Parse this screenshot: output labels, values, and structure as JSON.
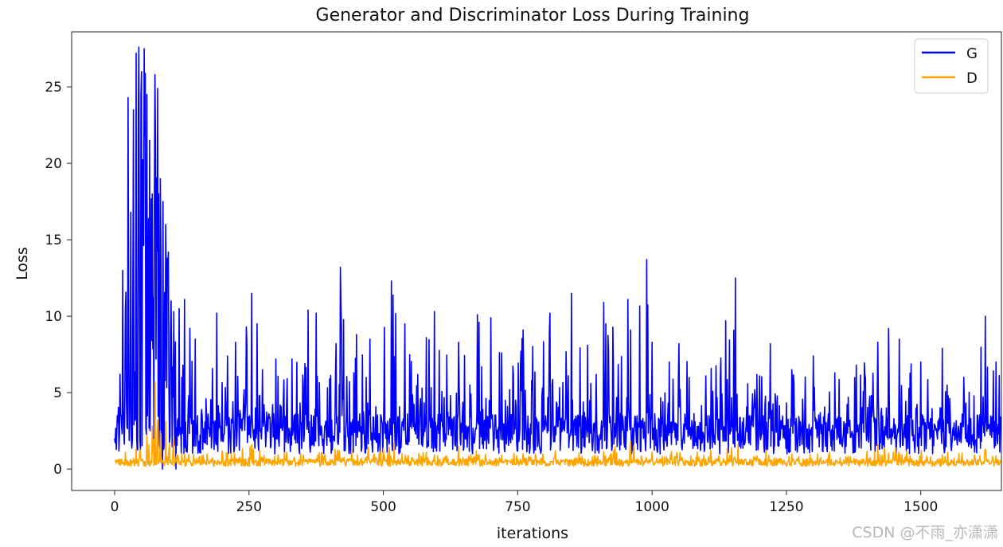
{
  "chart_data": {
    "type": "line",
    "title": "Generator and Discriminator Loss During Training",
    "xlabel": "iterations",
    "ylabel": "Loss",
    "xlim": [
      -80,
      1650
    ],
    "ylim": [
      -1.4,
      28.6
    ],
    "xticks": [
      0,
      250,
      500,
      750,
      1000,
      1250,
      1500
    ],
    "yticks": [
      0,
      5,
      10,
      15,
      20,
      25
    ],
    "grid": false,
    "legend": "top-right",
    "n_points": 1650,
    "series": [
      {
        "name": "G",
        "color": "#0000ff",
        "baseline": 2.2,
        "peaks": [
          [
            0,
            2.0
          ],
          [
            5,
            3.5
          ],
          [
            10,
            6.2
          ],
          [
            15,
            13.0
          ],
          [
            20,
            10.5
          ],
          [
            25,
            24.3
          ],
          [
            30,
            16.8
          ],
          [
            35,
            23.5
          ],
          [
            40,
            27.2
          ],
          [
            45,
            27.6
          ],
          [
            50,
            26.0
          ],
          [
            55,
            27.5
          ],
          [
            60,
            24.5
          ],
          [
            65,
            21.5
          ],
          [
            70,
            18.0
          ],
          [
            75,
            25.8
          ],
          [
            80,
            24.9
          ],
          [
            85,
            19.0
          ],
          [
            90,
            17.5
          ],
          [
            95,
            16.0
          ],
          [
            100,
            14.2
          ],
          [
            105,
            11.0
          ],
          [
            110,
            10.3
          ],
          [
            120,
            10.5
          ],
          [
            125,
            6.0
          ],
          [
            130,
            11.1
          ],
          [
            150,
            8.5
          ],
          [
            170,
            4.6
          ],
          [
            190,
            10.2
          ],
          [
            210,
            7.4
          ],
          [
            225,
            8.3
          ],
          [
            245,
            9.3
          ],
          [
            255,
            11.5
          ],
          [
            265,
            9.5
          ],
          [
            300,
            7.2
          ],
          [
            330,
            7.2
          ],
          [
            360,
            10.4
          ],
          [
            375,
            10.2
          ],
          [
            400,
            5.9
          ],
          [
            420,
            13.2
          ],
          [
            450,
            8.8
          ],
          [
            475,
            8.5
          ],
          [
            515,
            12.3
          ],
          [
            540,
            9.5
          ],
          [
            580,
            8.6
          ],
          [
            595,
            10.3
          ],
          [
            640,
            8.3
          ],
          [
            675,
            10.1
          ],
          [
            700,
            9.9
          ],
          [
            720,
            7.6
          ],
          [
            760,
            9.1
          ],
          [
            810,
            10.2
          ],
          [
            850,
            11.5
          ],
          [
            880,
            8.1
          ],
          [
            910,
            10.9
          ],
          [
            955,
            11.1
          ],
          [
            990,
            13.7
          ],
          [
            1000,
            8.3
          ],
          [
            1050,
            8.2
          ],
          [
            1100,
            6.1
          ],
          [
            1155,
            12.5
          ],
          [
            1200,
            6.1
          ],
          [
            1220,
            8.2
          ],
          [
            1260,
            6.5
          ],
          [
            1300,
            7.4
          ],
          [
            1340,
            6.3
          ],
          [
            1380,
            6.8
          ],
          [
            1420,
            8.3
          ],
          [
            1440,
            9.2
          ],
          [
            1460,
            8.5
          ],
          [
            1500,
            7.0
          ],
          [
            1540,
            7.9
          ],
          [
            1580,
            6.0
          ],
          [
            1620,
            10.0
          ],
          [
            1640,
            7.0
          ]
        ]
      },
      {
        "name": "D",
        "color": "#ffa500",
        "baseline": 0.4,
        "peaks": [
          [
            20,
            1.1
          ],
          [
            40,
            1.3
          ],
          [
            60,
            2.2
          ],
          [
            70,
            2.8
          ],
          [
            75,
            5.7
          ],
          [
            80,
            3.2
          ],
          [
            85,
            2.5
          ],
          [
            95,
            3.1
          ],
          [
            110,
            2.0
          ],
          [
            130,
            1.0
          ],
          [
            200,
            1.2
          ],
          [
            255,
            1.6
          ],
          [
            320,
            1.1
          ],
          [
            410,
            1.3
          ],
          [
            520,
            1.7
          ],
          [
            580,
            1.1
          ],
          [
            640,
            1.5
          ],
          [
            760,
            1.0
          ],
          [
            820,
            1.2
          ],
          [
            960,
            1.8
          ],
          [
            1000,
            1.1
          ],
          [
            1160,
            1.6
          ],
          [
            1260,
            1.0
          ],
          [
            1330,
            1.1
          ],
          [
            1420,
            1.6
          ],
          [
            1550,
            1.1
          ],
          [
            1620,
            1.3
          ]
        ]
      }
    ]
  },
  "watermark": "CSDN @不雨_亦潇潇"
}
